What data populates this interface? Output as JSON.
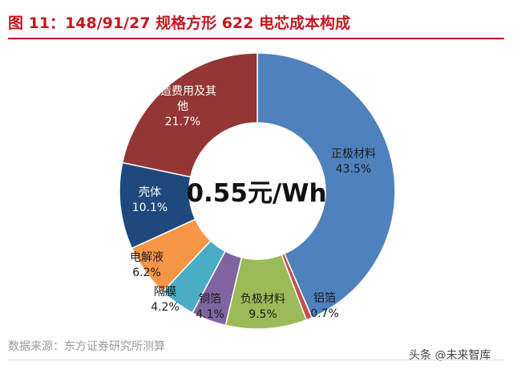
{
  "figure_title": "图 11：148/91/27 规格方形 622 电芯成本构成",
  "center_label": "0.55元/Wh",
  "source": "数据来源：东方证券研究所测算",
  "watermark": "头条 @未来智库",
  "chart_data": {
    "type": "pie",
    "variant": "donut",
    "center_text": "0.55元/Wh",
    "slices": [
      {
        "label": "正极材料",
        "value": 43.5,
        "value_label": "43.5%",
        "color": "#4f81bd",
        "label_color": "#1a1a1a"
      },
      {
        "label": "铝箔",
        "value": 0.7,
        "value_label": "0.7%",
        "color": "#c0504d",
        "label_color": "#1a1a1a"
      },
      {
        "label": "负极材料",
        "value": 9.5,
        "value_label": "9.5%",
        "color": "#9bbb59",
        "label_color": "#1a1a1a"
      },
      {
        "label": "铜箔",
        "value": 4.1,
        "value_label": "4.1%",
        "color": "#8064a2",
        "label_color": "#1a1a1a"
      },
      {
        "label": "隔膜",
        "value": 4.2,
        "value_label": "4.2%",
        "color": "#4bacc6",
        "label_color": "#1a1a1a"
      },
      {
        "label": "电解液",
        "value": 6.2,
        "value_label": "6.2%",
        "color": "#f79646",
        "label_color": "#1a1a1a"
      },
      {
        "label": "壳体",
        "value": 10.1,
        "value_label": "10.1%",
        "color": "#1f497d",
        "label_color": "#ffffff"
      },
      {
        "label": "制造费用及其他",
        "label_lines": [
          "制造费用及其",
          "他"
        ],
        "value": 21.7,
        "value_label": "21.7%",
        "color": "#943634",
        "label_color": "#ffffff"
      }
    ],
    "legend": "none",
    "start_angle_deg": 0,
    "direction": "clockwise"
  }
}
